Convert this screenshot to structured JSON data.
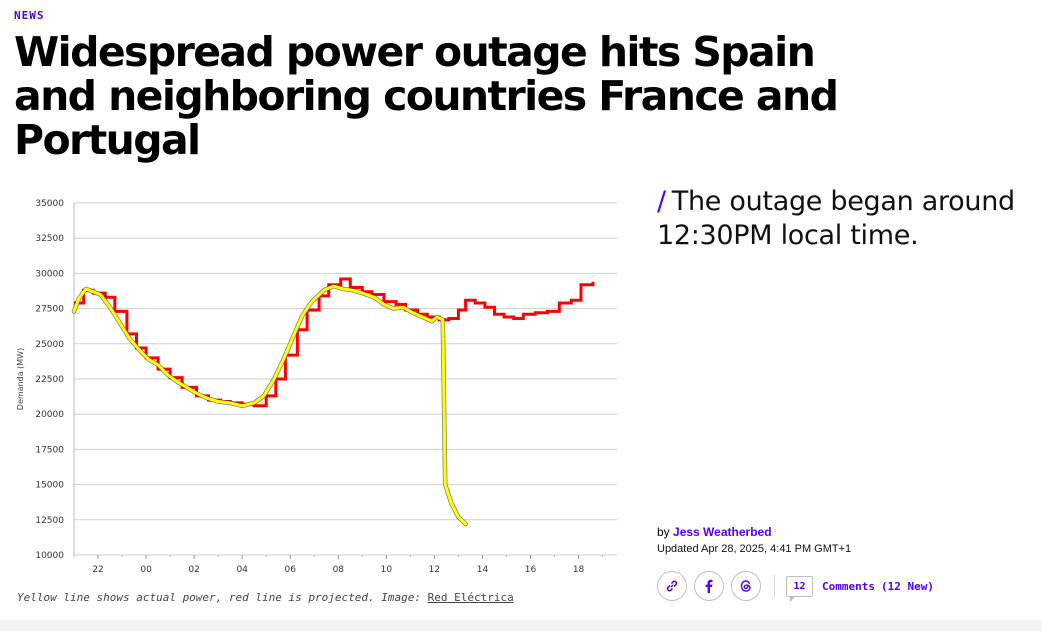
{
  "article": {
    "kicker": "NEWS",
    "headline": "Widespread power outage hits Spain and neighboring countries France and Portugal",
    "dek_slash": "/",
    "dek": "The outage began around 12:30PM local time.",
    "caption": "Yellow line shows actual power, red line is projected. Image:",
    "caption_credit": "Red Eléctrica",
    "byline_prefix": "by",
    "author": "Jess Weatherbed",
    "updated": "Updated Apr 28, 2025, 4:41 PM GMT+1",
    "share": [
      {
        "name": "link-icon"
      },
      {
        "name": "facebook-icon"
      },
      {
        "name": "threads-icon"
      }
    ],
    "comments_count": "12",
    "comments_label": "Comments",
    "comments_new": "(12 New)",
    "accent_color": "#5200ff"
  },
  "chart_data": {
    "type": "line",
    "title": "",
    "xlabel": "",
    "ylabel": "Demanda (MW)",
    "ylim": [
      10000,
      35000
    ],
    "xlim": [
      21,
      19.6
    ],
    "x_ticks": [
      "22",
      "00",
      "02",
      "04",
      "06",
      "08",
      "10",
      "12",
      "14",
      "16",
      "18"
    ],
    "y_ticks": [
      "35000",
      "32500",
      "30000",
      "27500",
      "25000",
      "22500",
      "20000",
      "17500",
      "15000",
      "12500",
      "10000"
    ],
    "grid": true,
    "series": [
      {
        "color": "#ff0000",
        "style": "step",
        "points": [
          [
            21.0,
            27900
          ],
          [
            21.4,
            28800
          ],
          [
            21.8,
            28600
          ],
          [
            22.3,
            28300
          ],
          [
            22.7,
            27300
          ],
          [
            23.2,
            25700
          ],
          [
            23.6,
            24700
          ],
          [
            24.0,
            24000
          ],
          [
            24.5,
            23200
          ],
          [
            25.0,
            22600
          ],
          [
            25.5,
            21900
          ],
          [
            26.1,
            21300
          ],
          [
            26.6,
            21000
          ],
          [
            27.1,
            20900
          ],
          [
            27.5,
            20800
          ],
          [
            28.0,
            20700
          ],
          [
            28.5,
            20600
          ],
          [
            29.0,
            21300
          ],
          [
            29.4,
            22500
          ],
          [
            29.8,
            24200
          ],
          [
            30.3,
            26000
          ],
          [
            30.7,
            27400
          ],
          [
            31.2,
            28400
          ],
          [
            31.6,
            29200
          ],
          [
            32.1,
            29600
          ],
          [
            32.5,
            29000
          ],
          [
            33.0,
            28700
          ],
          [
            33.4,
            28500
          ],
          [
            33.9,
            28000
          ],
          [
            34.4,
            27800
          ],
          [
            34.8,
            27400
          ],
          [
            35.3,
            27100
          ],
          [
            35.7,
            26900
          ],
          [
            36.2,
            26700
          ],
          [
            36.6,
            26800
          ],
          [
            37.0,
            27400
          ],
          [
            37.3,
            28100
          ],
          [
            37.7,
            27900
          ],
          [
            38.1,
            27600
          ],
          [
            38.5,
            27100
          ],
          [
            38.9,
            26900
          ],
          [
            39.3,
            26800
          ],
          [
            39.7,
            27100
          ],
          [
            40.2,
            27200
          ],
          [
            40.7,
            27300
          ],
          [
            41.2,
            27900
          ],
          [
            41.7,
            28100
          ],
          [
            42.1,
            29200
          ],
          [
            42.6,
            29400
          ]
        ]
      },
      {
        "color": "#ffff00",
        "style": "line",
        "points": [
          [
            21.0,
            27300
          ],
          [
            21.2,
            28200
          ],
          [
            21.5,
            28900
          ],
          [
            21.8,
            28700
          ],
          [
            22.1,
            28500
          ],
          [
            22.5,
            27600
          ],
          [
            22.9,
            26500
          ],
          [
            23.3,
            25400
          ],
          [
            23.7,
            24600
          ],
          [
            24.1,
            23900
          ],
          [
            24.5,
            23500
          ],
          [
            24.9,
            22800
          ],
          [
            25.3,
            22300
          ],
          [
            25.8,
            21800
          ],
          [
            26.2,
            21400
          ],
          [
            26.6,
            21100
          ],
          [
            27.0,
            20900
          ],
          [
            27.5,
            20800
          ],
          [
            28.0,
            20600
          ],
          [
            28.5,
            20800
          ],
          [
            28.9,
            21300
          ],
          [
            29.3,
            22400
          ],
          [
            29.7,
            23800
          ],
          [
            30.1,
            25400
          ],
          [
            30.5,
            27000
          ],
          [
            30.9,
            28000
          ],
          [
            31.4,
            28800
          ],
          [
            31.8,
            29100
          ],
          [
            32.2,
            28900
          ],
          [
            32.6,
            28800
          ],
          [
            33.0,
            28600
          ],
          [
            33.5,
            28300
          ],
          [
            33.9,
            27800
          ],
          [
            34.3,
            27500
          ],
          [
            34.7,
            27600
          ],
          [
            35.1,
            27200
          ],
          [
            35.5,
            26900
          ],
          [
            35.9,
            26600
          ],
          [
            36.1,
            26900
          ],
          [
            36.35,
            26700
          ],
          [
            36.45,
            15000
          ],
          [
            36.7,
            13700
          ],
          [
            37.0,
            12700
          ],
          [
            37.3,
            12200
          ]
        ]
      }
    ]
  }
}
